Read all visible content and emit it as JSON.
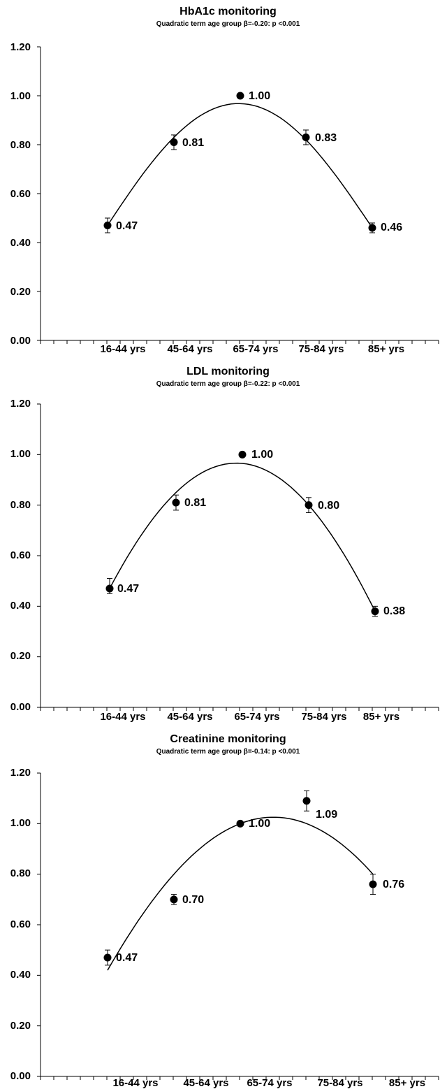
{
  "chart_data": [
    {
      "type": "scatter",
      "title": "HbA1c  monitoring",
      "subtitle": "Quadratic term age group β=-0.20: p <0.001",
      "categories": [
        "16-44 yrs",
        "45-64 yrs",
        "65-74 yrs",
        "75-84 yrs",
        "85+ yrs"
      ],
      "values": [
        0.47,
        0.81,
        1.0,
        0.83,
        0.46
      ],
      "value_labels": [
        "0.47",
        "0.81",
        "1.00",
        "0.83",
        "0.46"
      ],
      "error_low": [
        0.44,
        0.78,
        1.0,
        0.8,
        0.44
      ],
      "error_high": [
        0.5,
        0.84,
        1.0,
        0.86,
        0.48
      ],
      "fit": {
        "type": "quadratic",
        "values": [
          0.47,
          0.83,
          0.968,
          0.82,
          0.46
        ]
      },
      "yticks": [
        "0.00",
        "0.20",
        "0.40",
        "0.60",
        "0.80",
        "1.00",
        "1.20"
      ],
      "ylim": [
        0,
        1.2
      ],
      "grid": false
    },
    {
      "type": "scatter",
      "title": "LDL monitoring",
      "subtitle": "Quadratic term age group β=-0.22: p <0.001",
      "categories": [
        "16-44 yrs",
        "45-64 yrs",
        "65-74 yrs",
        "75-84 yrs",
        "85+ yrs"
      ],
      "values": [
        0.47,
        0.81,
        1.0,
        0.8,
        0.38
      ],
      "value_labels": [
        "0.47",
        "0.81",
        "1.00",
        "0.80",
        "0.38"
      ],
      "error_low": [
        0.45,
        0.78,
        1.0,
        0.77,
        0.36
      ],
      "error_high": [
        0.51,
        0.84,
        1.0,
        0.83,
        0.4
      ],
      "fit": {
        "type": "quadratic",
        "values": [
          0.47,
          0.85,
          0.965,
          0.8,
          0.38
        ]
      },
      "yticks": [
        "0.00",
        "0.20",
        "0.40",
        "0.60",
        "0.80",
        "1.00",
        "1.20"
      ],
      "ylim": [
        0,
        1.2
      ],
      "grid": false
    },
    {
      "type": "scatter",
      "title": "Creatinine monitoring",
      "subtitle": "Quadratic term age group β=-0.14: p <0.001",
      "categories": [
        "16-44 yrs",
        "45-64 yrs",
        "65-74 yrs",
        "75-84 yrs",
        "85+ yrs"
      ],
      "values": [
        0.47,
        0.7,
        1.0,
        1.09,
        0.76
      ],
      "value_labels": [
        "0.47",
        "0.70",
        "1.00",
        "1.09",
        "0.76"
      ],
      "error_low": [
        0.44,
        0.68,
        1.0,
        1.05,
        0.72
      ],
      "error_high": [
        0.5,
        0.72,
        1.0,
        1.13,
        0.8
      ],
      "fit": {
        "type": "quadratic",
        "values": [
          0.42,
          0.8,
          1.0,
          1.0,
          0.8
        ]
      },
      "yticks": [
        "0.00",
        "0.20",
        "0.40",
        "0.60",
        "0.80",
        "1.00",
        "1.20"
      ],
      "ylim": [
        0,
        1.2
      ],
      "grid": false
    }
  ]
}
